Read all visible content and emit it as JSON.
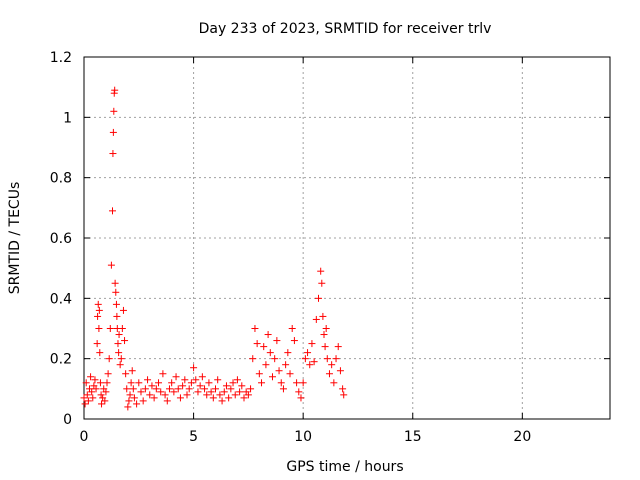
{
  "chart_data": {
    "type": "scatter",
    "title": "Day 233 of 2023, SRMTID for receiver trlv",
    "xlabel": "GPS time / hours",
    "ylabel": "SRMTID / TECUs",
    "xlim": [
      0,
      24
    ],
    "ylim": [
      0,
      1.2
    ],
    "xticks": [
      0,
      5,
      10,
      15,
      20
    ],
    "yticks": [
      0,
      0.2,
      0.4,
      0.6,
      0.8,
      1,
      1.2
    ],
    "xtick_labels": [
      "0",
      "5",
      "10",
      "15",
      "20"
    ],
    "ytick_labels": [
      "0",
      "0.2",
      "0.4",
      "0.6",
      "0.8",
      "1",
      "1.2"
    ],
    "grid": true,
    "marker": "+",
    "color": "#ff0000",
    "series": [
      {
        "name": "SRMTID",
        "x": [
          0.0,
          0.05,
          0.1,
          0.15,
          0.2,
          0.25,
          0.3,
          0.35,
          0.4,
          0.45,
          0.5,
          0.55,
          0.6,
          0.62,
          0.65,
          0.68,
          0.7,
          0.72,
          0.75,
          0.78,
          0.8,
          0.85,
          0.9,
          0.95,
          1.0,
          1.05,
          1.1,
          1.15,
          1.2,
          1.25,
          1.3,
          1.32,
          1.34,
          1.36,
          1.38,
          1.4,
          1.42,
          1.45,
          1.48,
          1.5,
          1.52,
          1.55,
          1.58,
          1.6,
          1.65,
          1.7,
          1.75,
          1.8,
          1.85,
          1.9,
          1.95,
          2.0,
          2.05,
          2.1,
          2.15,
          2.2,
          2.25,
          2.3,
          2.4,
          2.5,
          2.6,
          2.7,
          2.8,
          2.9,
          3.0,
          3.1,
          3.2,
          3.3,
          3.4,
          3.5,
          3.6,
          3.7,
          3.8,
          3.9,
          4.0,
          4.1,
          4.2,
          4.3,
          4.4,
          4.5,
          4.6,
          4.7,
          4.8,
          4.9,
          5.0,
          5.1,
          5.2,
          5.3,
          5.4,
          5.5,
          5.6,
          5.7,
          5.8,
          5.9,
          6.0,
          6.1,
          6.2,
          6.3,
          6.4,
          6.5,
          6.6,
          6.7,
          6.8,
          6.9,
          7.0,
          7.1,
          7.2,
          7.3,
          7.4,
          7.5,
          7.6,
          7.7,
          7.8,
          7.9,
          8.0,
          8.1,
          8.2,
          8.3,
          8.4,
          8.5,
          8.6,
          8.7,
          8.8,
          8.9,
          9.0,
          9.1,
          9.2,
          9.3,
          9.4,
          9.5,
          9.6,
          9.7,
          9.8,
          9.9,
          10.0,
          10.1,
          10.2,
          10.3,
          10.4,
          10.5,
          10.6,
          10.7,
          10.8,
          10.85,
          10.9,
          10.95,
          11.0,
          11.05,
          11.1,
          11.2,
          11.3,
          11.4,
          11.5,
          11.6,
          11.7,
          11.8,
          11.85
        ],
        "y": [
          0.07,
          0.05,
          0.12,
          0.08,
          0.06,
          0.1,
          0.14,
          0.09,
          0.07,
          0.11,
          0.13,
          0.1,
          0.25,
          0.34,
          0.38,
          0.3,
          0.36,
          0.22,
          0.12,
          0.08,
          0.05,
          0.07,
          0.1,
          0.06,
          0.09,
          0.12,
          0.15,
          0.2,
          0.3,
          0.51,
          0.69,
          0.88,
          0.95,
          1.02,
          1.08,
          1.09,
          0.45,
          0.42,
          0.38,
          0.34,
          0.3,
          0.25,
          0.22,
          0.28,
          0.18,
          0.2,
          0.3,
          0.36,
          0.26,
          0.15,
          0.1,
          0.04,
          0.06,
          0.08,
          0.12,
          0.16,
          0.1,
          0.07,
          0.05,
          0.12,
          0.09,
          0.06,
          0.1,
          0.13,
          0.08,
          0.11,
          0.07,
          0.1,
          0.12,
          0.09,
          0.15,
          0.08,
          0.06,
          0.1,
          0.12,
          0.09,
          0.14,
          0.1,
          0.07,
          0.11,
          0.13,
          0.08,
          0.1,
          0.12,
          0.17,
          0.13,
          0.09,
          0.11,
          0.14,
          0.1,
          0.08,
          0.12,
          0.09,
          0.07,
          0.1,
          0.13,
          0.08,
          0.06,
          0.09,
          0.11,
          0.07,
          0.1,
          0.12,
          0.08,
          0.13,
          0.09,
          0.11,
          0.07,
          0.09,
          0.08,
          0.1,
          0.2,
          0.3,
          0.25,
          0.15,
          0.12,
          0.24,
          0.18,
          0.28,
          0.22,
          0.14,
          0.2,
          0.26,
          0.16,
          0.12,
          0.1,
          0.18,
          0.22,
          0.15,
          0.3,
          0.26,
          0.12,
          0.09,
          0.07,
          0.12,
          0.2,
          0.22,
          0.18,
          0.25,
          0.19,
          0.33,
          0.4,
          0.49,
          0.45,
          0.34,
          0.28,
          0.24,
          0.3,
          0.2,
          0.15,
          0.18,
          0.12,
          0.2,
          0.24,
          0.16,
          0.1,
          0.08
        ]
      }
    ]
  }
}
